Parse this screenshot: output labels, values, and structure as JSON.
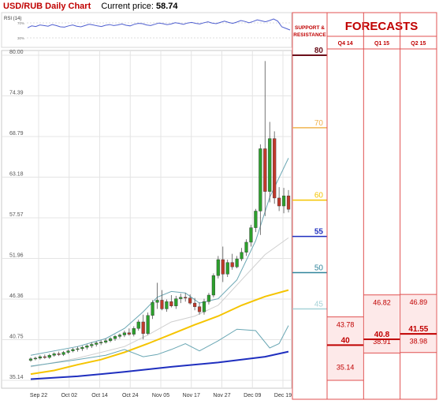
{
  "header": {
    "title": "USD/RUB Daily Chart",
    "price_label": "Current price:",
    "price_value": "58.74"
  },
  "rsi": {
    "label": "RSI (14)",
    "levels": [
      "70%",
      "30%"
    ],
    "values": [
      57,
      63,
      61,
      66,
      64,
      62,
      67,
      64,
      60,
      59,
      63,
      66,
      62,
      60,
      64,
      68,
      66,
      63,
      61,
      65,
      67,
      64,
      66,
      69,
      65,
      63,
      68,
      71,
      70,
      66,
      64,
      68,
      72,
      70,
      67,
      69,
      73,
      71,
      68,
      72,
      74,
      71,
      69,
      73,
      76,
      72,
      70,
      74,
      78,
      74,
      71,
      75,
      80,
      77,
      73,
      77,
      82,
      79,
      76,
      80,
      85,
      78,
      60,
      55,
      50
    ]
  },
  "chart_data": {
    "type": "candlestick",
    "x_tick_labels": [
      "Sep 22",
      "Oct 02",
      "Oct 14",
      "Oct 24",
      "Nov 05",
      "Nov 17",
      "Nov 27",
      "Dec 09",
      "Dec 19"
    ],
    "y_tick_labels": [
      "80.00",
      "74.39",
      "68.79",
      "63.18",
      "57.57",
      "51.96",
      "46.36",
      "40.75",
      "35.14"
    ],
    "ylim": [
      35.14,
      80.0
    ],
    "grid": true,
    "candles": [
      [
        37.9,
        38.3,
        37.7,
        38.1
      ],
      [
        38.1,
        38.4,
        37.9,
        38.2
      ],
      [
        38.2,
        38.6,
        38.0,
        38.4
      ],
      [
        38.4,
        38.7,
        38.1,
        38.3
      ],
      [
        38.3,
        38.8,
        38.1,
        38.6
      ],
      [
        38.6,
        39.0,
        38.4,
        38.8
      ],
      [
        38.8,
        39.1,
        38.5,
        38.7
      ],
      [
        38.7,
        39.2,
        38.5,
        39.0
      ],
      [
        39.0,
        39.4,
        38.8,
        39.2
      ],
      [
        39.2,
        39.6,
        39.0,
        39.4
      ],
      [
        39.4,
        39.8,
        39.1,
        39.5
      ],
      [
        39.5,
        39.9,
        39.2,
        39.7
      ],
      [
        39.7,
        40.1,
        39.4,
        39.9
      ],
      [
        39.9,
        40.4,
        39.6,
        40.1
      ],
      [
        40.1,
        40.5,
        39.8,
        40.3
      ],
      [
        40.3,
        40.7,
        40.0,
        40.4
      ],
      [
        40.4,
        40.9,
        40.2,
        40.6
      ],
      [
        40.6,
        41.1,
        40.4,
        40.9
      ],
      [
        40.9,
        41.4,
        40.6,
        41.2
      ],
      [
        41.2,
        41.6,
        40.9,
        41.4
      ],
      [
        41.4,
        42.0,
        41.1,
        41.7
      ],
      [
        41.7,
        42.3,
        41.3,
        41.5
      ],
      [
        41.5,
        42.6,
        41.2,
        42.3
      ],
      [
        42.3,
        43.5,
        42.0,
        43.2
      ],
      [
        43.2,
        44.2,
        40.8,
        41.6
      ],
      [
        41.6,
        44.5,
        41.4,
        44.1
      ],
      [
        44.1,
        46.2,
        43.6,
        45.9
      ],
      [
        45.9,
        48.6,
        45.0,
        46.2
      ],
      [
        46.2,
        47.6,
        44.8,
        45.0
      ],
      [
        45.0,
        46.3,
        44.6,
        46.0
      ],
      [
        46.0,
        46.9,
        45.2,
        45.4
      ],
      [
        45.4,
        46.8,
        45.0,
        46.4
      ],
      [
        46.4,
        47.1,
        45.8,
        46.6
      ],
      [
        46.6,
        47.2,
        46.0,
        46.5
      ],
      [
        46.5,
        47.0,
        45.6,
        45.8
      ],
      [
        45.8,
        46.5,
        44.8,
        45.3
      ],
      [
        45.3,
        45.9,
        44.2,
        44.6
      ],
      [
        44.6,
        46.4,
        44.2,
        46.0
      ],
      [
        46.0,
        47.2,
        45.6,
        46.9
      ],
      [
        46.9,
        49.9,
        46.6,
        49.6
      ],
      [
        49.6,
        52.3,
        49.2,
        51.8
      ],
      [
        51.8,
        53.6,
        48.7,
        49.8
      ],
      [
        49.8,
        51.8,
        49.4,
        51.4
      ],
      [
        51.4,
        52.6,
        50.4,
        50.8
      ],
      [
        50.8,
        52.3,
        50.6,
        51.9
      ],
      [
        51.9,
        53.4,
        51.6,
        52.8
      ],
      [
        52.8,
        54.6,
        52.3,
        54.2
      ],
      [
        54.2,
        56.6,
        53.6,
        56.2
      ],
      [
        56.2,
        58.8,
        55.6,
        58.5
      ],
      [
        58.5,
        67.7,
        55.2,
        67.1
      ],
      [
        67.1,
        79.2,
        57.8,
        61.2
      ],
      [
        61.2,
        70.8,
        59.7,
        68.5
      ],
      [
        68.5,
        69.5,
        59.5,
        60.3
      ],
      [
        60.3,
        61.8,
        58.5,
        59.2
      ],
      [
        59.2,
        61.7,
        58.2,
        60.6
      ],
      [
        60.6,
        61.4,
        58.3,
        58.74
      ]
    ],
    "moving_averages": [
      {
        "color": "#f5c400",
        "values": [
          [
            0,
            36.0
          ],
          [
            5,
            36.5
          ],
          [
            10,
            37.3
          ],
          [
            15,
            38.0
          ],
          [
            20,
            39.0
          ],
          [
            25,
            40.2
          ],
          [
            30,
            41.5
          ],
          [
            35,
            42.8
          ],
          [
            40,
            44.0
          ],
          [
            45,
            45.5
          ],
          [
            50,
            46.7
          ],
          [
            55,
            47.6
          ]
        ]
      },
      {
        "color": "#1f2fbf",
        "values": [
          [
            0,
            35.3
          ],
          [
            10,
            35.7
          ],
          [
            20,
            36.3
          ],
          [
            30,
            37.0
          ],
          [
            40,
            37.6
          ],
          [
            50,
            38.4
          ],
          [
            55,
            39.1
          ]
        ]
      },
      {
        "color": "#cfcfcf",
        "values": [
          [
            0,
            37.0
          ],
          [
            10,
            38.2
          ],
          [
            20,
            39.8
          ],
          [
            25,
            41.4
          ],
          [
            30,
            43.2
          ],
          [
            35,
            44.0
          ],
          [
            40,
            45.5
          ],
          [
            45,
            49.0
          ],
          [
            50,
            52.5
          ],
          [
            55,
            54.8
          ]
        ]
      },
      {
        "color": "#6aa7b4",
        "values": [
          [
            0,
            38.6
          ],
          [
            10,
            39.8
          ],
          [
            16,
            40.9
          ],
          [
            20,
            42.3
          ],
          [
            24,
            44.6
          ],
          [
            27,
            46.6
          ],
          [
            30,
            47.4
          ],
          [
            33,
            47.2
          ],
          [
            36,
            45.8
          ],
          [
            40,
            46.4
          ],
          [
            44,
            49.0
          ],
          [
            48,
            54.4
          ],
          [
            51,
            60.4
          ],
          [
            55,
            65.8
          ]
        ]
      },
      {
        "color": "#6aa7b4",
        "values": [
          [
            0,
            37.1
          ],
          [
            10,
            38.0
          ],
          [
            16,
            38.6
          ],
          [
            20,
            39.4
          ],
          [
            24,
            38.4
          ],
          [
            27,
            38.7
          ],
          [
            30,
            39.4
          ],
          [
            33,
            40.2
          ],
          [
            36,
            39.2
          ],
          [
            40,
            40.6
          ],
          [
            44,
            42.2
          ],
          [
            48,
            42.0
          ],
          [
            51,
            39.6
          ],
          [
            53,
            40.2
          ],
          [
            55,
            42.7
          ]
        ]
      }
    ],
    "support_resistance": {
      "header": "SUPPORT & RESISTANCE",
      "ylim": [
        35.14,
        80.0
      ],
      "levels": [
        {
          "value": 80,
          "label": "80",
          "color": "#6b0f1a"
        },
        {
          "value": 70,
          "label": "70",
          "color": "#f0b451"
        },
        {
          "value": 60,
          "label": "60",
          "color": "#f5c400"
        },
        {
          "value": 55,
          "label": "55",
          "color": "#1f2fbf"
        },
        {
          "value": 50,
          "label": "50",
          "color": "#31859c"
        },
        {
          "value": 45,
          "label": "45",
          "color": "#a7d3d8"
        }
      ]
    },
    "forecasts": {
      "title": "FORECASTS",
      "columns": [
        {
          "label": "Q4 14",
          "high": "43.78",
          "mid": "40",
          "low": "35.14",
          "high_value": 43.78,
          "mid_value": 40.0,
          "low_value": 35.14,
          "low_label_value": 36.3
        },
        {
          "label": "Q1 15",
          "high": "46.82",
          "mid": "40.8",
          "low": "38.91",
          "high_value": 46.82,
          "mid_value": 40.8,
          "low_value": 38.91,
          "low_label_value": 39.8
        },
        {
          "label": "Q2 15",
          "high": "46.89",
          "mid": "41.55",
          "low": "38.98",
          "high_value": 46.89,
          "mid_value": 41.55,
          "low_value": 38.98,
          "low_label_value": 39.9
        }
      ]
    }
  }
}
